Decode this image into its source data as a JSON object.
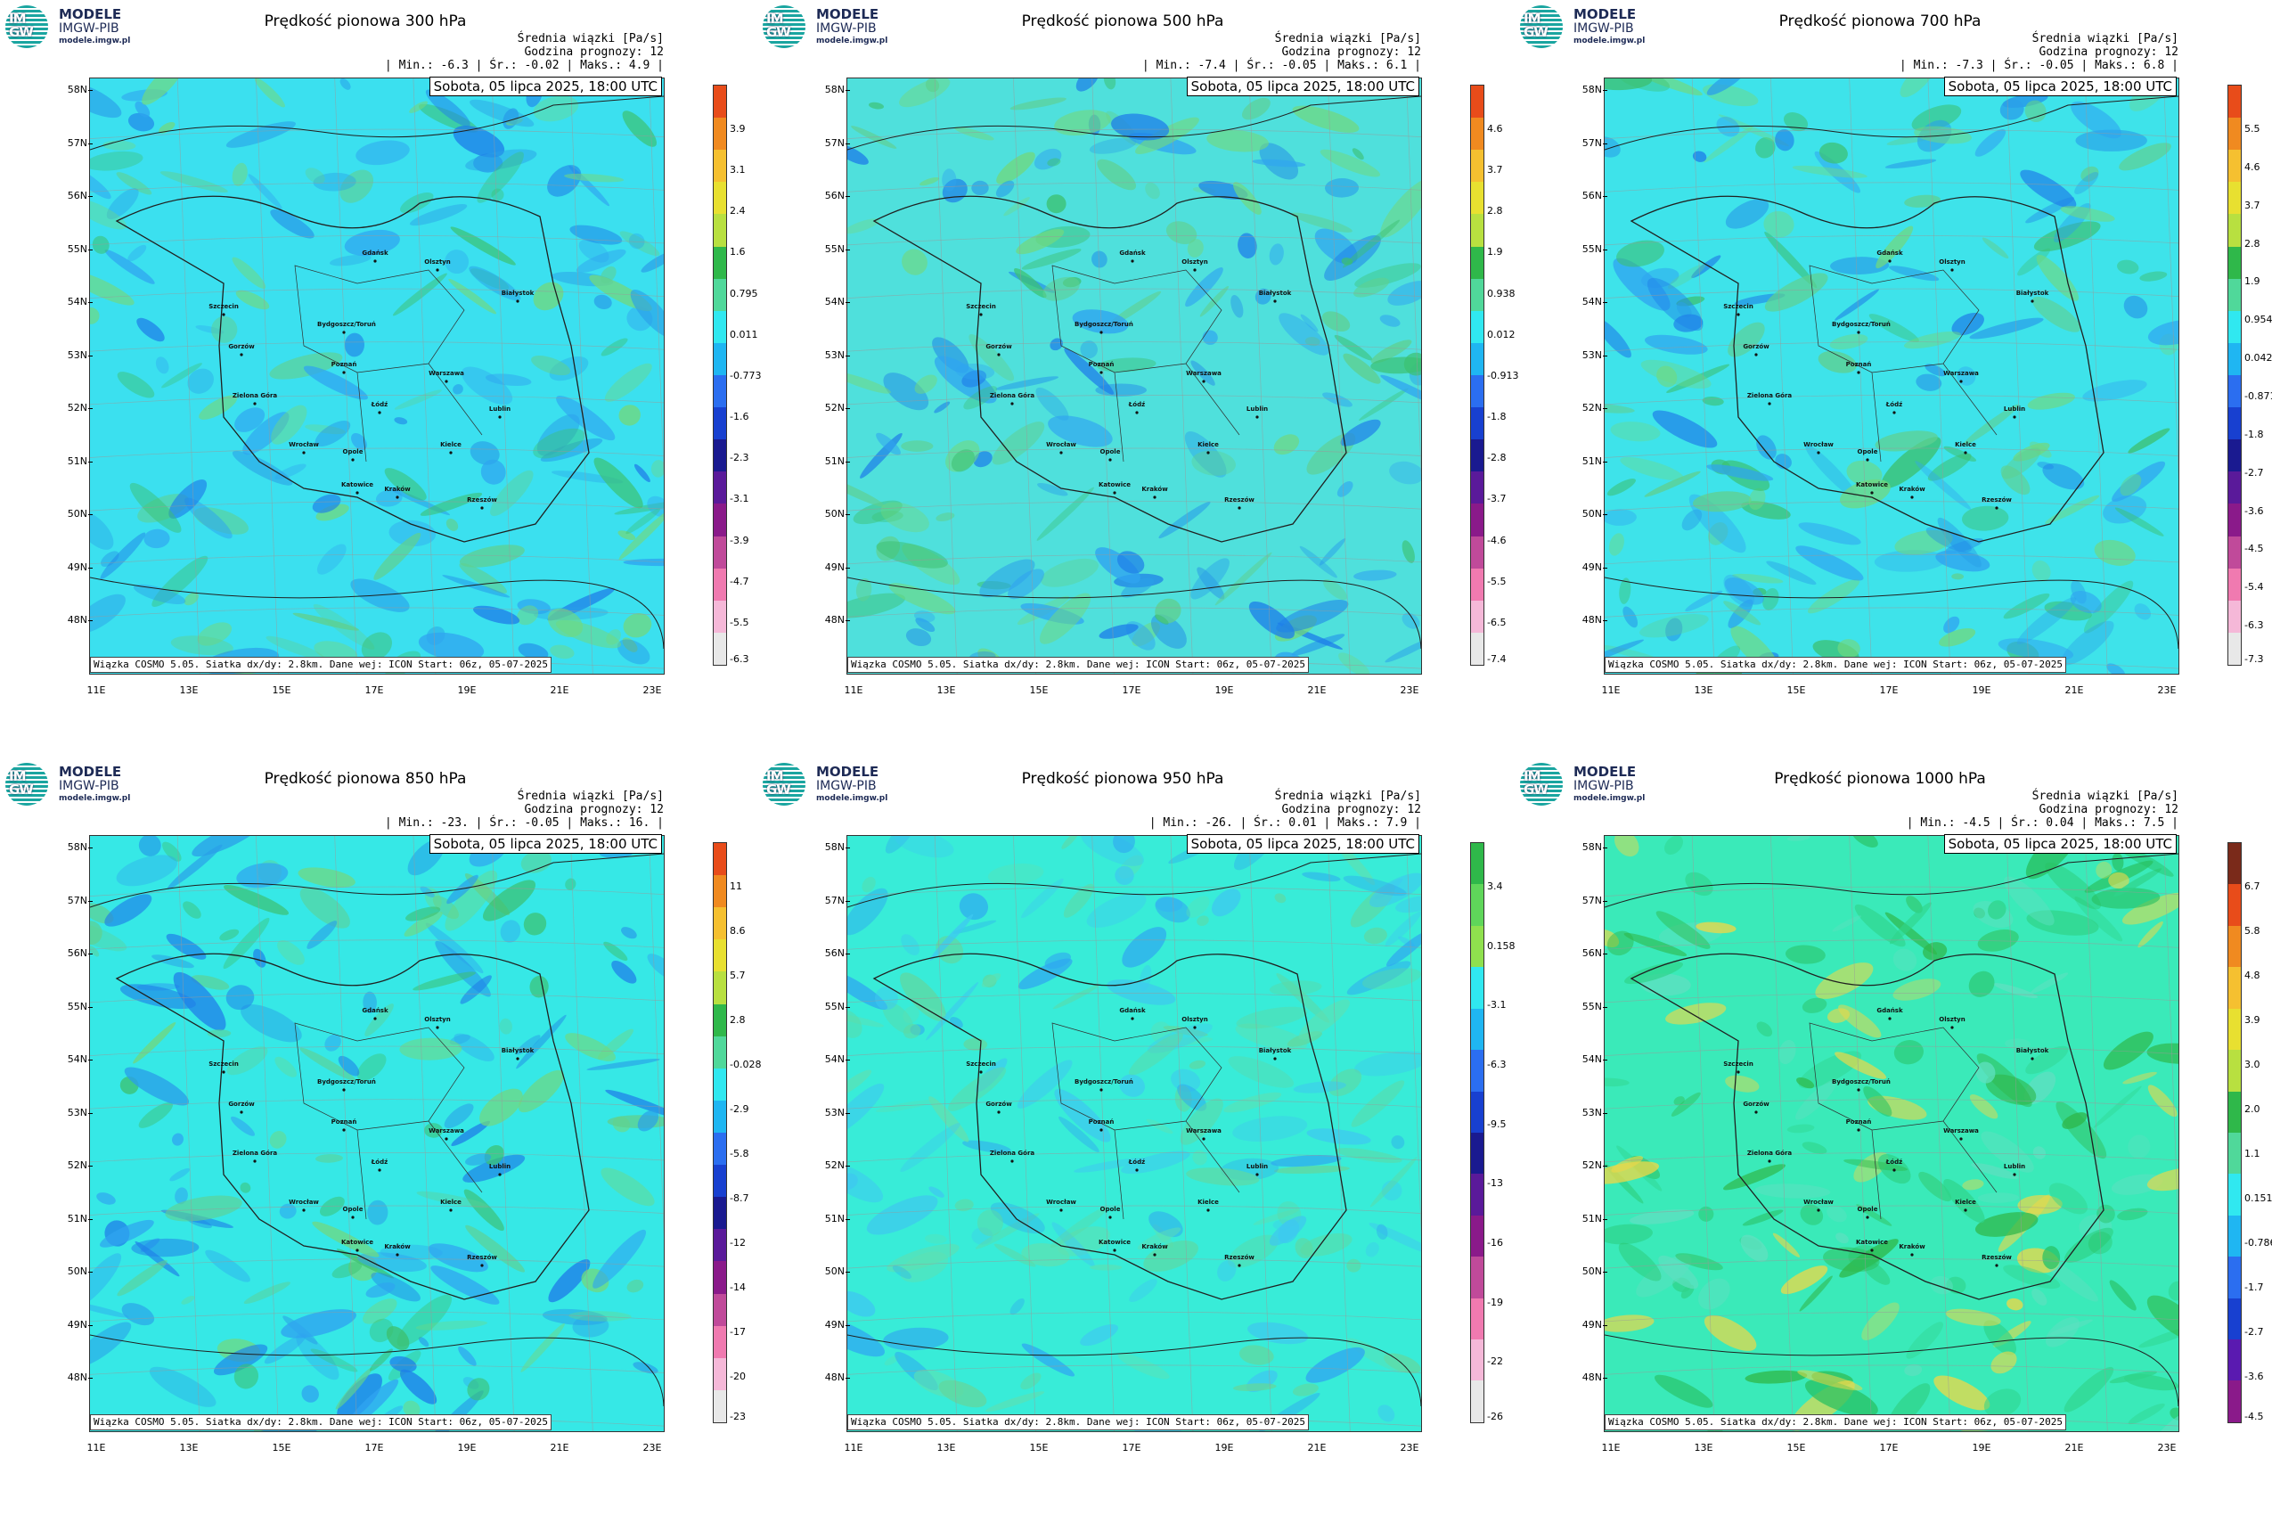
{
  "logo": {
    "title": "MODELE",
    "subtitle": "IMGW-PIB",
    "url": "modele.imgw.pl",
    "badge_top": "IM",
    "badge_bottom": "GW"
  },
  "common": {
    "header_line1": "Średnia wiązki [Pa/s]",
    "header_line2": "Godzina prognozy: 12",
    "date": "Sobota, 05 lipca 2025, 18:00 UTC",
    "footer": "Wiązka COSMO 5.05. Siatka dx/dy: 2.8km. Dane wej: ICON Start: 06z, 05-07-2025",
    "lat_labels": [
      "58N",
      "57N",
      "56N",
      "55N",
      "54N",
      "53N",
      "52N",
      "51N",
      "50N",
      "49N",
      "48N"
    ],
    "lon_labels": [
      "11E",
      "13E",
      "15E",
      "17E",
      "19E",
      "21E",
      "23E"
    ],
    "cities": [
      "Gdańsk",
      "Szczecin",
      "Olsztyn",
      "Białystok",
      "Bydgoszcz/Toruń",
      "Gorzów",
      "Poznań",
      "Warszawa",
      "Zielona Góra",
      "Łódź",
      "Lublin",
      "Wrocław",
      "Opole",
      "Kielce",
      "Katowice",
      "Kraków",
      "Rzeszów"
    ]
  },
  "panels": [
    {
      "title": "Prędkość pionowa 300 hPa",
      "stats": "| Min.:    -6.3 | Śr.:    -0.02 | Maks.:     4.9 |",
      "colorbar": [
        "3.9",
        "3.1",
        "2.4",
        "1.6",
        "0.795",
        "0.011",
        "-0.773",
        "-1.6",
        "-2.3",
        "-3.1",
        "-3.9",
        "-4.7",
        "-5.5",
        "-6.3"
      ],
      "scale": "full",
      "tint": "#3be0ef"
    },
    {
      "title": "Prędkość pionowa 500 hPa",
      "stats": "| Min.:    -7.4 | Śr.:    -0.05 | Maks.:     6.1 |",
      "colorbar": [
        "4.6",
        "3.7",
        "2.8",
        "1.9",
        "0.938",
        "0.012",
        "-0.913",
        "-1.8",
        "-2.8",
        "-3.7",
        "-4.6",
        "-5.5",
        "-6.5",
        "-7.4"
      ],
      "scale": "full",
      "tint": "#4fe0dc"
    },
    {
      "title": "Prędkość pionowa 700 hPa",
      "stats": "| Min.:    -7.3 | Śr.:    -0.05 | Maks.:     6.8 |",
      "colorbar": [
        "5.5",
        "4.6",
        "3.7",
        "2.8",
        "1.9",
        "0.954",
        "0.042",
        "-0.871",
        "-1.8",
        "-2.7",
        "-3.6",
        "-4.5",
        "-5.4",
        "-6.3",
        "-7.3"
      ],
      "scale": "full",
      "tint": "#3ee3ea"
    },
    {
      "title": "Prędkość pionowa 850 hPa",
      "stats": "| Min.:    -23. | Śr.:    -0.05 | Maks.:     16. |",
      "colorbar": [
        "11",
        "8.6",
        "5.7",
        "2.8",
        "-0.028",
        "-2.9",
        "-5.8",
        "-8.7",
        "-12",
        "-14",
        "-17",
        "-20",
        "-23"
      ],
      "scale": "full",
      "tint": "#36e8e6"
    },
    {
      "title": "Prędkość pionowa 950 hPa",
      "stats": "| Min.:    -26. | Śr.:     0.01 | Maks.:     7.9 |",
      "colorbar": [
        "3.4",
        "0.158",
        "-3.1",
        "-6.3",
        "-9.5",
        "-13",
        "-16",
        "-19",
        "-22",
        "-26"
      ],
      "scale": "green",
      "tint": "#38ecd8"
    },
    {
      "title": "Prędkość pionowa 1000 hPa",
      "stats": "| Min.:    -4.5 | Śr.:     0.04 | Maks.:     7.5 |",
      "colorbar": [
        "6.7",
        "5.8",
        "4.8",
        "3.9",
        "3.0",
        "2.0",
        "1.1",
        "0.151",
        "-0.786",
        "-1.7",
        "-2.7",
        "-3.6",
        "-4.5"
      ],
      "scale": "purple",
      "tint": "#3aeab9"
    }
  ],
  "colors": {
    "positive_high": "#e84c1a",
    "positive_mid": "#e8e030",
    "green": "#2fb84a",
    "cyan": "#30e8f0",
    "blue": "#2b6ef0",
    "navy": "#1a1a90",
    "purple": "#8a1a8a",
    "pink": "#f07ab0",
    "pale": "#e8e8e8"
  }
}
